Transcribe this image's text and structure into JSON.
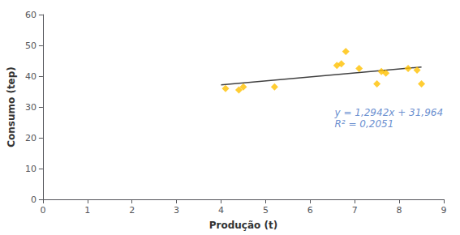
{
  "chart_data": {
    "type": "scatter",
    "xlabel": "Produção (t)",
    "ylabel": "Consumo (tep)",
    "xlim": [
      0,
      9
    ],
    "ylim": [
      0,
      60
    ],
    "xticks": [
      0,
      1,
      2,
      3,
      4,
      5,
      6,
      7,
      8,
      9
    ],
    "yticks": [
      0,
      10,
      20,
      30,
      40,
      50,
      60
    ],
    "grid": false,
    "series": [
      {
        "type": "scatter",
        "color": "#FFC000",
        "marker": "diamond",
        "x": [
          4.1,
          4.4,
          4.5,
          5.2,
          6.6,
          6.7,
          6.8,
          7.1,
          7.5,
          7.6,
          7.7,
          8.2,
          8.4,
          8.5
        ],
        "values": [
          36.0,
          35.5,
          36.5,
          36.5,
          43.5,
          44.0,
          48.0,
          42.5,
          37.5,
          41.5,
          41.0,
          42.5,
          42.0,
          37.5
        ]
      },
      {
        "type": "line",
        "color": "#404040",
        "line_style": "solid",
        "x": [
          4.0,
          8.5
        ],
        "values": [
          37.1408,
          42.9647
        ]
      }
    ],
    "annotations": [
      {
        "text": "y = 1,2942x + 31,964",
        "x": 6.55,
        "y": 26.5,
        "color": "#4472C4"
      },
      {
        "text": "R² = 0,2051",
        "x": 6.55,
        "y": 23.0,
        "color": "#4472C4"
      }
    ]
  }
}
